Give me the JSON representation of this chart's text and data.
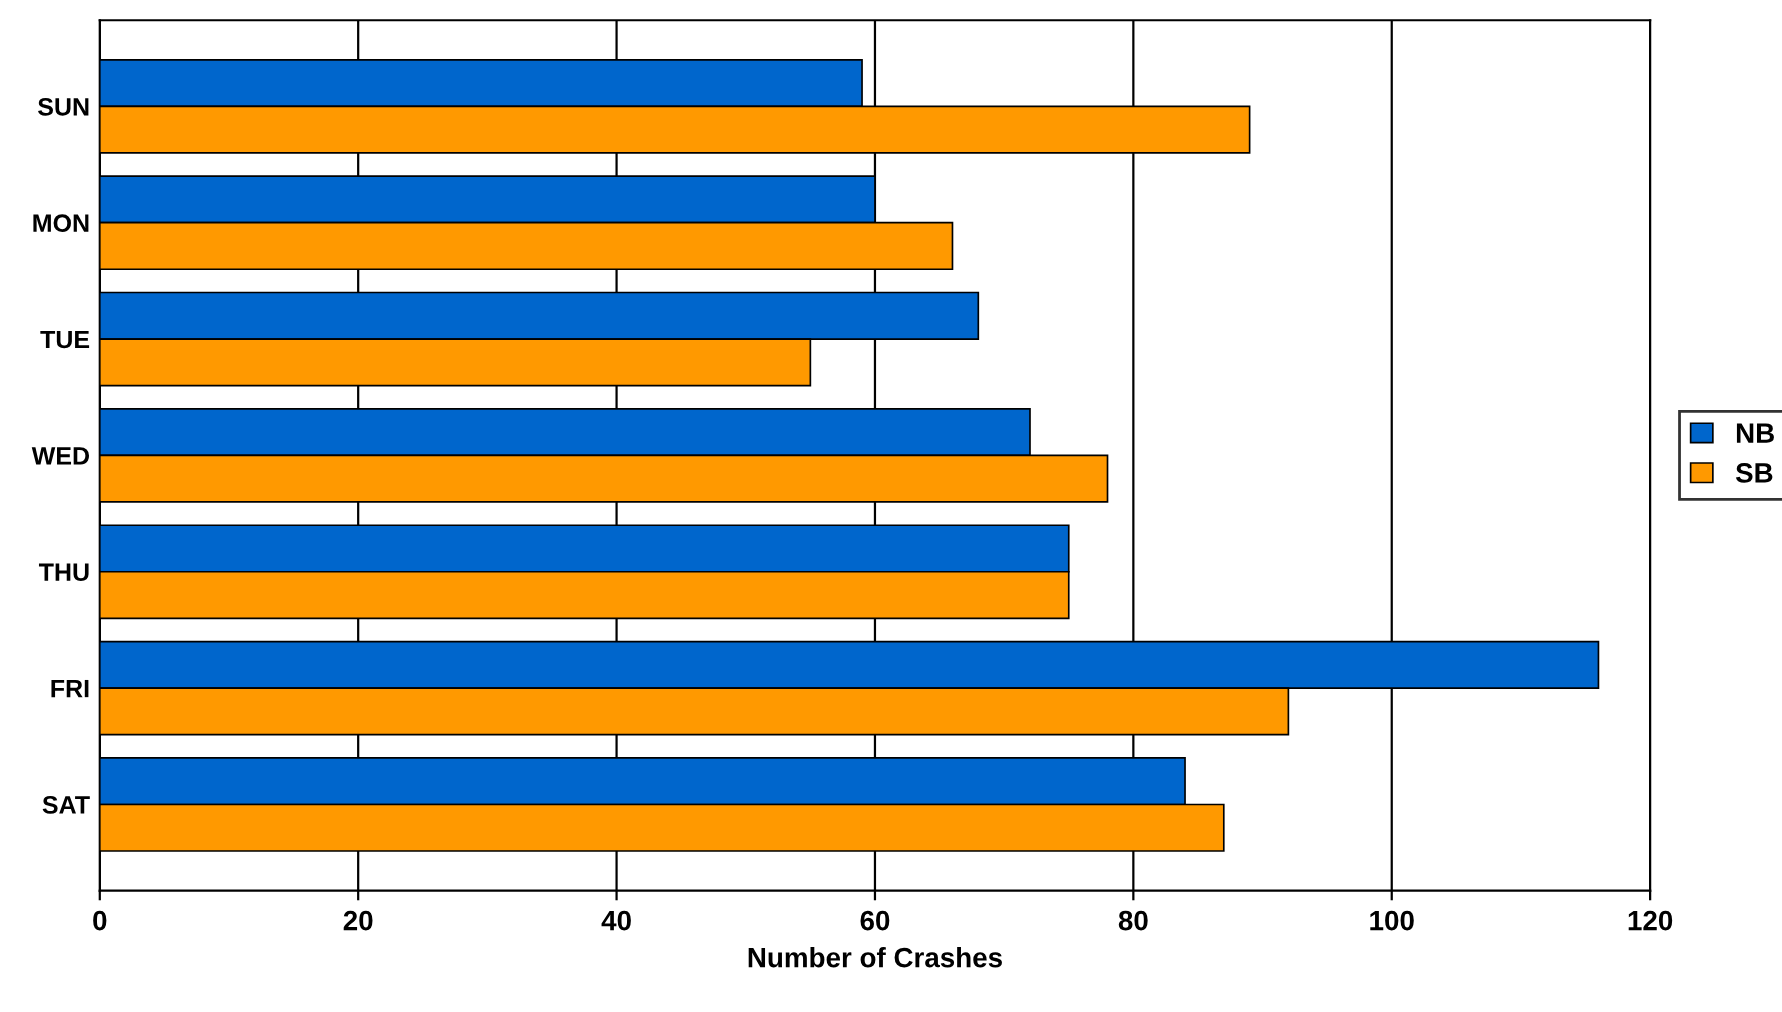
{
  "chart_data": {
    "type": "bar",
    "orientation": "horizontal",
    "xlabel": "Number of Crashes",
    "categories": [
      "SUN",
      "MON",
      "TUE",
      "WED",
      "THU",
      "FRI",
      "SAT"
    ],
    "series": [
      {
        "name": "NB",
        "color": "#0066cc",
        "values": [
          59,
          60,
          68,
          72,
          75,
          116,
          84
        ]
      },
      {
        "name": "SB",
        "color": "#ff9900",
        "values": [
          89,
          66,
          55,
          78,
          75,
          92,
          87
        ]
      }
    ],
    "xlim": [
      0,
      120
    ],
    "xticks": [
      0,
      20,
      40,
      60,
      80,
      100,
      120
    ],
    "grid": "x",
    "legend": "right"
  }
}
